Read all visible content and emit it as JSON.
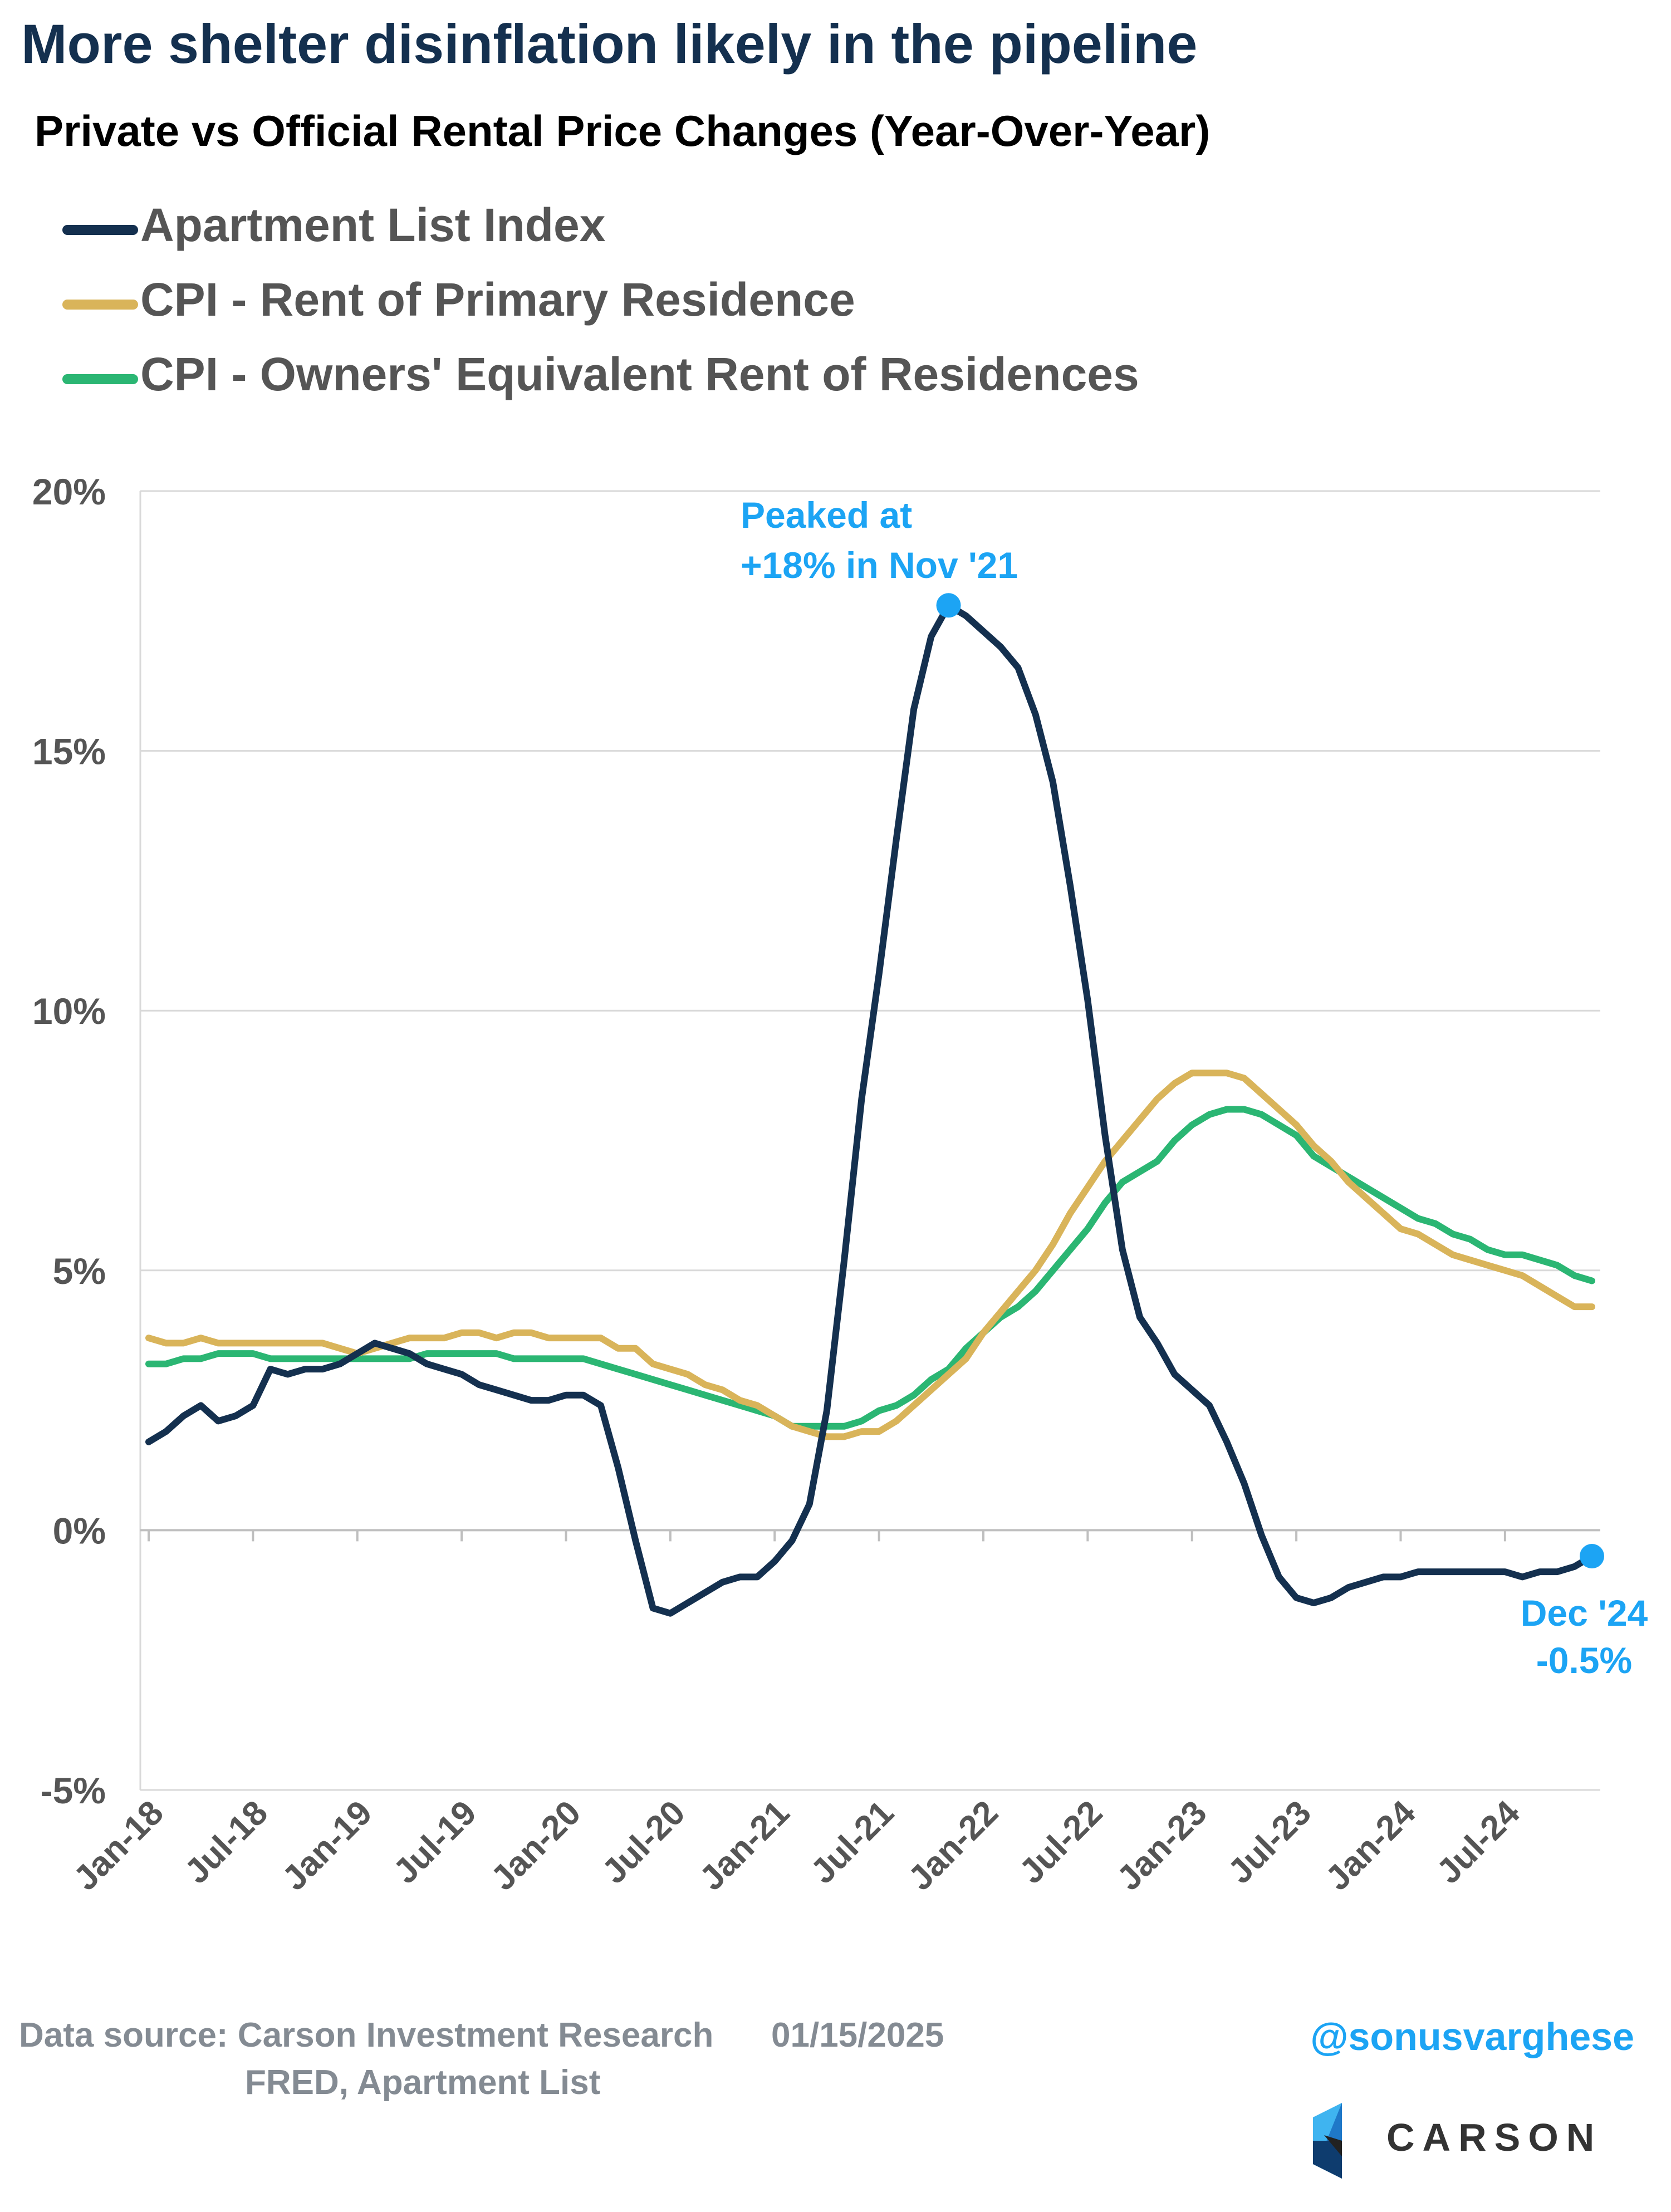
{
  "title": "More shelter disinflation likely in the pipeline",
  "subtitle": "Private vs Official Rental Price Changes (Year-Over-Year)",
  "legend": [
    {
      "label": "Apartment List Index",
      "color": "#14304f"
    },
    {
      "label": "CPI - Rent of Primary Residence",
      "color": "#d9b45a"
    },
    {
      "label": "CPI - Owners' Equivalent Rent of Residences",
      "color": "#2bb673"
    }
  ],
  "annotations": {
    "peak_line1": "Peaked at",
    "peak_line2": "+18% in Nov '21",
    "latest_line1": "Dec '24",
    "latest_line2": "-0.5%",
    "color": "#1ca4f4"
  },
  "footer": {
    "source_line1": "Data source: Carson Investment Research",
    "date": "01/15/2025",
    "source_line2": "FRED, Apartment List",
    "handle": "@sonusvarghese",
    "logo_text": "CARSON"
  },
  "chart_data": {
    "type": "line",
    "ylim": [
      -5,
      20
    ],
    "yticks": [
      -5,
      0,
      5,
      10,
      15,
      20
    ],
    "ytick_labels": [
      "-5%",
      "0%",
      "5%",
      "10%",
      "15%",
      "20%"
    ],
    "x_start": "Jan-18",
    "x_tick_labels": [
      "Jan-18",
      "Jul-18",
      "Jan-19",
      "Jul-19",
      "Jan-20",
      "Jul-20",
      "Jan-21",
      "Jul-21",
      "Jan-22",
      "Jul-22",
      "Jan-23",
      "Jul-23",
      "Jan-24",
      "Jul-24"
    ],
    "grid": true,
    "legend_position": "top-left",
    "series": [
      {
        "name": "Apartment List Index",
        "color": "#14304f",
        "values": [
          1.7,
          1.9,
          2.2,
          2.4,
          2.1,
          2.2,
          2.4,
          3.1,
          3.0,
          3.1,
          3.1,
          3.2,
          3.4,
          3.6,
          3.5,
          3.4,
          3.2,
          3.1,
          3.0,
          2.8,
          2.7,
          2.6,
          2.5,
          2.5,
          2.6,
          2.6,
          2.4,
          1.2,
          -0.2,
          -1.5,
          -1.6,
          -1.4,
          -1.2,
          -1.0,
          -0.9,
          -0.9,
          -0.6,
          -0.2,
          0.5,
          2.3,
          5.2,
          8.3,
          10.7,
          13.3,
          15.8,
          17.2,
          17.8,
          17.6,
          17.3,
          17.0,
          16.6,
          15.7,
          14.4,
          12.4,
          10.2,
          7.6,
          5.4,
          4.1,
          3.6,
          3.0,
          2.7,
          2.4,
          1.7,
          0.9,
          -0.1,
          -0.9,
          -1.3,
          -1.4,
          -1.3,
          -1.1,
          -1.0,
          -0.9,
          -0.9,
          -0.8,
          -0.8,
          -0.8,
          -0.8,
          -0.8,
          -0.8,
          -0.9,
          -0.8,
          -0.8,
          -0.7,
          -0.5
        ]
      },
      {
        "name": "CPI - Rent of Primary Residence",
        "color": "#d9b45a",
        "values": [
          3.7,
          3.6,
          3.6,
          3.7,
          3.6,
          3.6,
          3.6,
          3.6,
          3.6,
          3.6,
          3.6,
          3.5,
          3.4,
          3.5,
          3.6,
          3.7,
          3.7,
          3.7,
          3.8,
          3.8,
          3.7,
          3.8,
          3.8,
          3.7,
          3.7,
          3.7,
          3.7,
          3.5,
          3.5,
          3.2,
          3.1,
          3.0,
          2.8,
          2.7,
          2.5,
          2.4,
          2.2,
          2.0,
          1.9,
          1.8,
          1.8,
          1.9,
          1.9,
          2.1,
          2.4,
          2.7,
          3.0,
          3.3,
          3.8,
          4.2,
          4.6,
          5.0,
          5.5,
          6.1,
          6.6,
          7.1,
          7.5,
          7.9,
          8.3,
          8.6,
          8.8,
          8.8,
          8.8,
          8.7,
          8.4,
          8.1,
          7.8,
          7.4,
          7.1,
          6.7,
          6.4,
          6.1,
          5.8,
          5.7,
          5.5,
          5.3,
          5.2,
          5.1,
          5.0,
          4.9,
          4.7,
          4.5,
          4.3,
          4.3
        ]
      },
      {
        "name": "CPI - Owners' Equivalent Rent of Residences",
        "color": "#2bb673",
        "values": [
          3.2,
          3.2,
          3.3,
          3.3,
          3.4,
          3.4,
          3.4,
          3.3,
          3.3,
          3.3,
          3.3,
          3.3,
          3.3,
          3.3,
          3.3,
          3.3,
          3.4,
          3.4,
          3.4,
          3.4,
          3.4,
          3.3,
          3.3,
          3.3,
          3.3,
          3.3,
          3.2,
          3.1,
          3.0,
          2.9,
          2.8,
          2.7,
          2.6,
          2.5,
          2.4,
          2.3,
          2.2,
          2.0,
          2.0,
          2.0,
          2.0,
          2.1,
          2.3,
          2.4,
          2.6,
          2.9,
          3.1,
          3.5,
          3.8,
          4.1,
          4.3,
          4.6,
          5.0,
          5.4,
          5.8,
          6.3,
          6.7,
          6.9,
          7.1,
          7.5,
          7.8,
          8.0,
          8.1,
          8.1,
          8.0,
          7.8,
          7.6,
          7.2,
          7.0,
          6.8,
          6.6,
          6.4,
          6.2,
          6.0,
          5.9,
          5.7,
          5.6,
          5.4,
          5.3,
          5.3,
          5.2,
          5.1,
          4.9,
          4.8
        ]
      }
    ]
  }
}
